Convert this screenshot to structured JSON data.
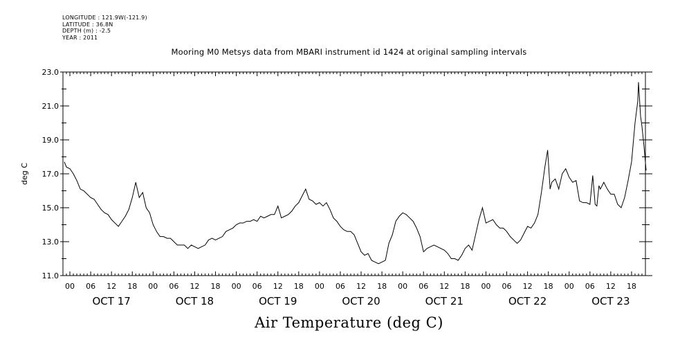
{
  "header": {
    "longitude": "LONGITUDE : 121.9W(-121.9)",
    "latitude": "LATITUDE : 36.8N",
    "depth": "DEPTH (m) : -2.5",
    "year": "YEAR : 2011"
  },
  "chart_data": {
    "type": "line",
    "title": "Mooring M0 Metsys data from MBARI instrument id 1424 at original sampling intervals",
    "ylabel": "deg C",
    "xlabel": "Air Temperature (deg C)",
    "ylim": [
      11.0,
      23.0
    ],
    "yticks": [
      "11.0",
      "13.0",
      "15.0",
      "17.0",
      "19.0",
      "21.0",
      "23.0"
    ],
    "xlim_hours": [
      -2,
      166
    ],
    "hour_tick_labels": [
      {
        "h": 0,
        "label": "00"
      },
      {
        "h": 6,
        "label": "06"
      },
      {
        "h": 12,
        "label": "12"
      },
      {
        "h": 18,
        "label": "18"
      },
      {
        "h": 24,
        "label": "00"
      },
      {
        "h": 30,
        "label": "06"
      },
      {
        "h": 36,
        "label": "12"
      },
      {
        "h": 42,
        "label": "18"
      },
      {
        "h": 48,
        "label": "00"
      },
      {
        "h": 54,
        "label": "06"
      },
      {
        "h": 60,
        "label": "12"
      },
      {
        "h": 66,
        "label": "18"
      },
      {
        "h": 72,
        "label": "00"
      },
      {
        "h": 78,
        "label": "06"
      },
      {
        "h": 84,
        "label": "12"
      },
      {
        "h": 90,
        "label": "18"
      },
      {
        "h": 96,
        "label": "00"
      },
      {
        "h": 102,
        "label": "06"
      },
      {
        "h": 108,
        "label": "12"
      },
      {
        "h": 114,
        "label": "18"
      },
      {
        "h": 120,
        "label": "00"
      },
      {
        "h": 126,
        "label": "06"
      },
      {
        "h": 132,
        "label": "12"
      },
      {
        "h": 138,
        "label": "18"
      },
      {
        "h": 144,
        "label": "00"
      },
      {
        "h": 150,
        "label": "06"
      },
      {
        "h": 156,
        "label": "12"
      },
      {
        "h": 162,
        "label": "18"
      }
    ],
    "day_labels": [
      {
        "h": 12,
        "label": "OCT 17"
      },
      {
        "h": 36,
        "label": "OCT 18"
      },
      {
        "h": 60,
        "label": "OCT 19"
      },
      {
        "h": 84,
        "label": "OCT 20"
      },
      {
        "h": 108,
        "label": "OCT 21"
      },
      {
        "h": 132,
        "label": "OCT 22"
      },
      {
        "h": 156,
        "label": "OCT 23"
      }
    ],
    "series": [
      {
        "values": [
          [
            -1.6,
            17.7
          ],
          [
            -1,
            17.4
          ],
          [
            0,
            17.3
          ],
          [
            1,
            17.0
          ],
          [
            2,
            16.6
          ],
          [
            3,
            16.1
          ],
          [
            4,
            16.0
          ],
          [
            5,
            15.8
          ],
          [
            6,
            15.6
          ],
          [
            7,
            15.5
          ],
          [
            8,
            15.2
          ],
          [
            9,
            14.9
          ],
          [
            10,
            14.7
          ],
          [
            11,
            14.6
          ],
          [
            12,
            14.3
          ],
          [
            13,
            14.1
          ],
          [
            14,
            13.9
          ],
          [
            15,
            14.2
          ],
          [
            16,
            14.5
          ],
          [
            17,
            14.9
          ],
          [
            18,
            15.6
          ],
          [
            19,
            16.5
          ],
          [
            20,
            15.6
          ],
          [
            21,
            15.9
          ],
          [
            22,
            15.0
          ],
          [
            23,
            14.7
          ],
          [
            24,
            14.0
          ],
          [
            25,
            13.6
          ],
          [
            26,
            13.3
          ],
          [
            27,
            13.3
          ],
          [
            28,
            13.2
          ],
          [
            29,
            13.2
          ],
          [
            30,
            13.0
          ],
          [
            31,
            12.8
          ],
          [
            32,
            12.8
          ],
          [
            33,
            12.8
          ],
          [
            34,
            12.6
          ],
          [
            35,
            12.8
          ],
          [
            36,
            12.7
          ],
          [
            37,
            12.6
          ],
          [
            38,
            12.7
          ],
          [
            39,
            12.8
          ],
          [
            40,
            13.1
          ],
          [
            41,
            13.2
          ],
          [
            42,
            13.1
          ],
          [
            43,
            13.2
          ],
          [
            44,
            13.3
          ],
          [
            45,
            13.6
          ],
          [
            46,
            13.7
          ],
          [
            47,
            13.8
          ],
          [
            48,
            14.0
          ],
          [
            49,
            14.1
          ],
          [
            50,
            14.1
          ],
          [
            51,
            14.2
          ],
          [
            52,
            14.2
          ],
          [
            53,
            14.3
          ],
          [
            54,
            14.2
          ],
          [
            55,
            14.5
          ],
          [
            56,
            14.4
          ],
          [
            57,
            14.5
          ],
          [
            58,
            14.6
          ],
          [
            59,
            14.6
          ],
          [
            60,
            15.1
          ],
          [
            61,
            14.4
          ],
          [
            62,
            14.5
          ],
          [
            63,
            14.6
          ],
          [
            64,
            14.8
          ],
          [
            65,
            15.1
          ],
          [
            66,
            15.3
          ],
          [
            67,
            15.7
          ],
          [
            68,
            16.1
          ],
          [
            69,
            15.5
          ],
          [
            70,
            15.4
          ],
          [
            71,
            15.2
          ],
          [
            72,
            15.3
          ],
          [
            73,
            15.1
          ],
          [
            74,
            15.3
          ],
          [
            75,
            14.9
          ],
          [
            76,
            14.4
          ],
          [
            77,
            14.2
          ],
          [
            78,
            13.9
          ],
          [
            79,
            13.7
          ],
          [
            80,
            13.6
          ],
          [
            81,
            13.6
          ],
          [
            82,
            13.4
          ],
          [
            83,
            12.9
          ],
          [
            84,
            12.4
          ],
          [
            85,
            12.2
          ],
          [
            86,
            12.3
          ],
          [
            87,
            11.9
          ],
          [
            88,
            11.8
          ],
          [
            89,
            11.7
          ],
          [
            90,
            11.8
          ],
          [
            91,
            11.9
          ],
          [
            92,
            12.9
          ],
          [
            93,
            13.4
          ],
          [
            94,
            14.2
          ],
          [
            95,
            14.5
          ],
          [
            96,
            14.7
          ],
          [
            97,
            14.6
          ],
          [
            98,
            14.4
          ],
          [
            99,
            14.2
          ],
          [
            100,
            13.8
          ],
          [
            101,
            13.3
          ],
          [
            102,
            12.4
          ],
          [
            103,
            12.6
          ],
          [
            104,
            12.7
          ],
          [
            105,
            12.8
          ],
          [
            106,
            12.7
          ],
          [
            107,
            12.6
          ],
          [
            108,
            12.5
          ],
          [
            109,
            12.3
          ],
          [
            110,
            12.0
          ],
          [
            111,
            12.0
          ],
          [
            112,
            11.9
          ],
          [
            113,
            12.2
          ],
          [
            114,
            12.6
          ],
          [
            115,
            12.8
          ],
          [
            116,
            12.5
          ],
          [
            117,
            13.4
          ],
          [
            118,
            14.3
          ],
          [
            119,
            15.0
          ],
          [
            120,
            14.1
          ],
          [
            121,
            14.2
          ],
          [
            122,
            14.3
          ],
          [
            123,
            14.0
          ],
          [
            124,
            13.8
          ],
          [
            125,
            13.8
          ],
          [
            126,
            13.6
          ],
          [
            127,
            13.3
          ],
          [
            128,
            13.1
          ],
          [
            129,
            12.9
          ],
          [
            130,
            13.1
          ],
          [
            131,
            13.5
          ],
          [
            132,
            13.9
          ],
          [
            133,
            13.8
          ],
          [
            134,
            14.1
          ],
          [
            135,
            14.6
          ],
          [
            136,
            15.9
          ],
          [
            137,
            17.4
          ],
          [
            137.8,
            18.4
          ],
          [
            138.5,
            16.1
          ],
          [
            139,
            16.5
          ],
          [
            140,
            16.7
          ],
          [
            141,
            16.1
          ],
          [
            142,
            17.0
          ],
          [
            143,
            17.3
          ],
          [
            144,
            16.8
          ],
          [
            145,
            16.5
          ],
          [
            146,
            16.6
          ],
          [
            147,
            15.4
          ],
          [
            148,
            15.3
          ],
          [
            149,
            15.3
          ],
          [
            150,
            15.2
          ],
          [
            150.8,
            16.9
          ],
          [
            151.5,
            15.2
          ],
          [
            152,
            15.1
          ],
          [
            152.6,
            16.3
          ],
          [
            153,
            16.1
          ],
          [
            154,
            16.5
          ],
          [
            155,
            16.1
          ],
          [
            156,
            15.8
          ],
          [
            157,
            15.8
          ],
          [
            158,
            15.2
          ],
          [
            159,
            15.0
          ],
          [
            160,
            15.6
          ],
          [
            161,
            16.6
          ],
          [
            162,
            17.7
          ],
          [
            163,
            20.0
          ],
          [
            163.8,
            21.3
          ],
          [
            164,
            22.4
          ],
          [
            164.6,
            20.4
          ],
          [
            165,
            19.8
          ],
          [
            165.6,
            18.6
          ],
          [
            166.2,
            17.2
          ]
        ]
      }
    ]
  }
}
